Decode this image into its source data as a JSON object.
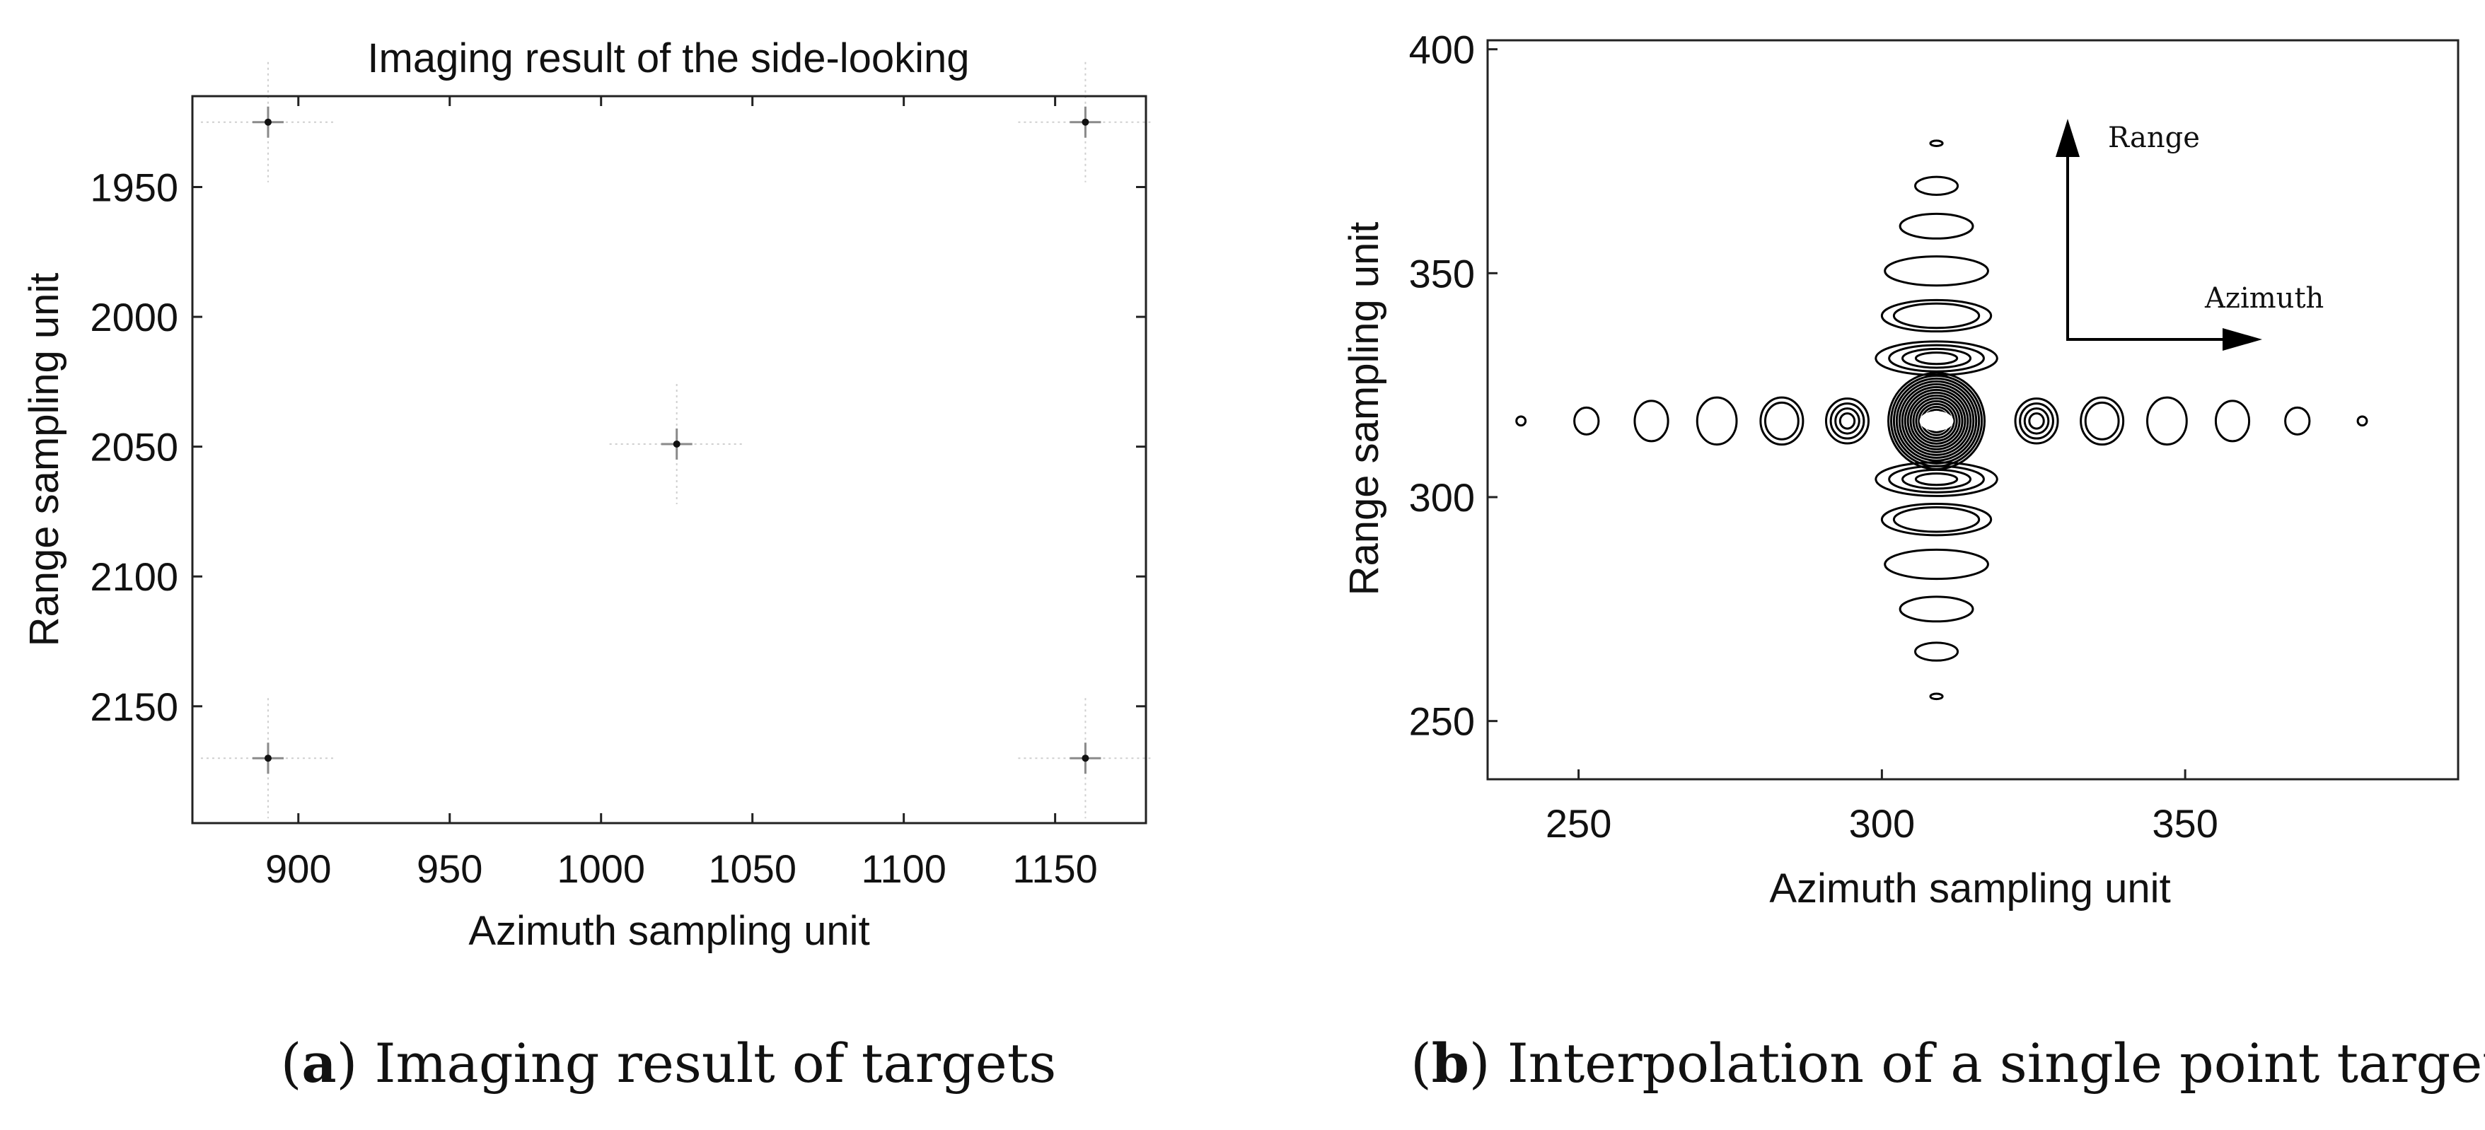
{
  "chart_data": [
    {
      "type": "heatmap",
      "title": "Imaging result of the side-looking",
      "xlabel": "Azimuth sampling unit",
      "ylabel": "Range sampling unit",
      "xlim": [
        865,
        1180
      ],
      "ylim": [
        1915,
        2195
      ],
      "y_reversed": true,
      "xticks": [
        900,
        950,
        1000,
        1050,
        1100,
        1150
      ],
      "yticks": [
        1950,
        2000,
        2050,
        2100,
        2150
      ],
      "points": [
        {
          "x": 890,
          "y": 1925
        },
        {
          "x": 1160,
          "y": 1925
        },
        {
          "x": 1025,
          "y": 2049
        },
        {
          "x": 890,
          "y": 2170
        },
        {
          "x": 1160,
          "y": 2170
        }
      ],
      "caption_letter": "a",
      "caption_text": ") Imaging result of targets"
    },
    {
      "type": "contour",
      "title": "",
      "xlabel": "Azimuth sampling unit",
      "ylabel": "Range sampling unit",
      "xlim": [
        235,
        395
      ],
      "ylim": [
        237,
        402
      ],
      "xticks": [
        250,
        300,
        350
      ],
      "yticks": [
        250,
        300,
        350,
        400
      ],
      "center": {
        "x": 309,
        "y": 317
      },
      "azimuth_sidelobes": [
        {
          "x": 240.5,
          "w": 1.5,
          "h": 2
        },
        {
          "x": 251.3,
          "w": 4,
          "h": 6
        },
        {
          "x": 262,
          "w": 5.5,
          "h": 9
        },
        {
          "x": 272.8,
          "w": 6.5,
          "h": 10.5
        },
        {
          "x": 283.5,
          "w": 7,
          "h": 10.5,
          "rings": 2
        },
        {
          "x": 294.3,
          "w": 7,
          "h": 10,
          "rings": 4
        },
        {
          "x": 325.5,
          "w": 7,
          "h": 10,
          "rings": 4
        },
        {
          "x": 336.3,
          "w": 7,
          "h": 10.5,
          "rings": 2
        },
        {
          "x": 347,
          "w": 6.5,
          "h": 10.5
        },
        {
          "x": 357.8,
          "w": 5.5,
          "h": 9
        },
        {
          "x": 368.5,
          "w": 4,
          "h": 6
        },
        {
          "x": 379.2,
          "w": 1.5,
          "h": 2
        }
      ],
      "range_sidelobes": [
        {
          "y": 379,
          "w": 2,
          "h": 1.2
        },
        {
          "y": 369.5,
          "w": 7,
          "h": 4
        },
        {
          "y": 360.5,
          "w": 12,
          "h": 5.5
        },
        {
          "y": 350.5,
          "w": 17,
          "h": 6.5
        },
        {
          "y": 340.5,
          "w": 18,
          "h": 7,
          "rings": 2
        },
        {
          "y": 331,
          "w": 20,
          "h": 7.5,
          "rings": 4
        },
        {
          "y": 304,
          "w": 20,
          "h": 7.5,
          "rings": 4
        },
        {
          "y": 295,
          "w": 18,
          "h": 7,
          "rings": 2
        },
        {
          "y": 285,
          "w": 17,
          "h": 6.5
        },
        {
          "y": 275,
          "w": 12,
          "h": 5.5
        },
        {
          "y": 265.5,
          "w": 7,
          "h": 4
        },
        {
          "y": 255.5,
          "w": 2,
          "h": 1.2
        }
      ],
      "annotations": {
        "range_label": "Range",
        "azimuth_label": "Azimuth"
      },
      "caption_letter": "b",
      "caption_text": ") Interpolation of a single point target"
    }
  ]
}
